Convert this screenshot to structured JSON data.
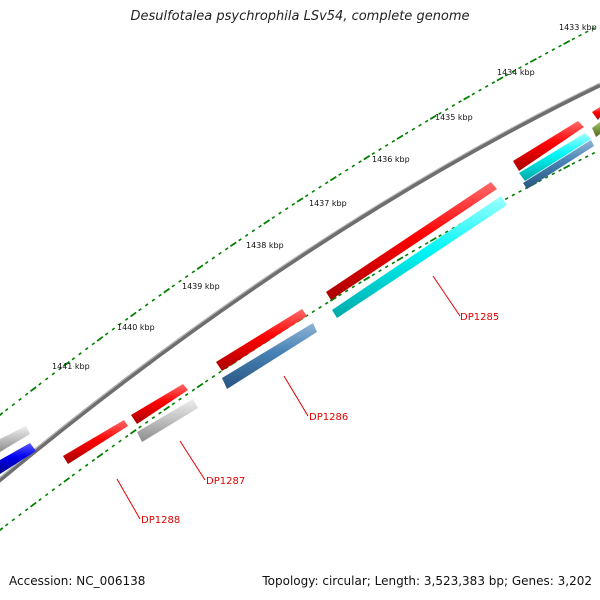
{
  "title": "Desulfotalea psychrophila LSv54, complete genome",
  "accession": "Accession: NC_006138",
  "summary": "Topology: circular; Length: 3,523,383 bp; Genes: 3,202",
  "scale_labels": [
    "1433 kbp",
    "1434 kbp",
    "1435 kbp",
    "1436 kbp",
    "1437 kbp",
    "1438 kbp",
    "1439 kbp",
    "1440 kbp",
    "1441 kbp"
  ],
  "gene_labels": [
    "DP1285",
    "DP1286",
    "DP1287",
    "DP1288"
  ],
  "colors": {
    "strand_forward": "#ff0000",
    "cyan": "#00ffff",
    "steelblue": "#4682b4",
    "silver": "#c0c0c0",
    "blue": "#0000ee",
    "olive": "#6b8e23",
    "backbone": "#808080",
    "ticks": "#008000",
    "label": "#e00000"
  }
}
